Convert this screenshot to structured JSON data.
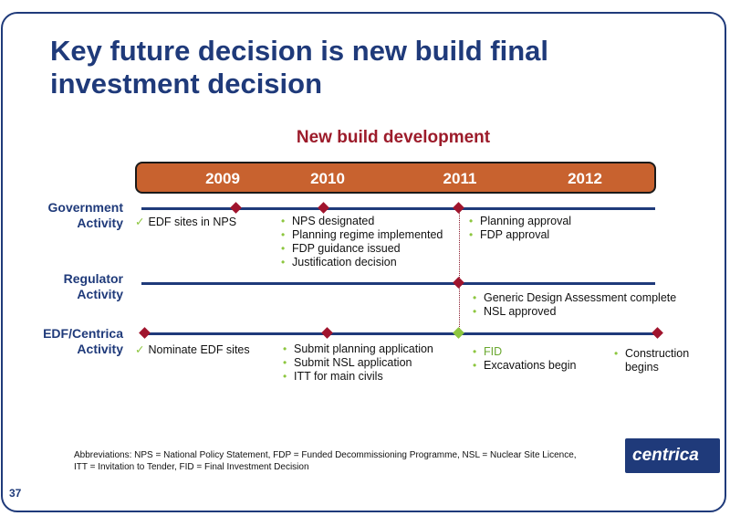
{
  "page": {
    "title_line1": "Key future decision is new build final",
    "title_line2": "investment decision",
    "subtitle": "New build development",
    "page_number": "37",
    "logo_text": "centrica"
  },
  "years": [
    "2009",
    "2010",
    "2011",
    "2012"
  ],
  "rows": {
    "government": {
      "label_line1": "Government",
      "label_line2": "Activity",
      "check": "EDF sites in NPS",
      "group_2010": [
        "NPS designated",
        "Planning regime implemented",
        "FDP guidance issued",
        "Justification decision"
      ],
      "group_2011": [
        "Planning approval",
        "FDP approval"
      ]
    },
    "regulator": {
      "label_line1": "Regulator",
      "label_line2": "Activity",
      "group_2011": [
        "Generic Design Assessment complete",
        "NSL approved"
      ]
    },
    "edf": {
      "label_line1": "EDF/Centrica",
      "label_line2": "Activity",
      "check": "Nominate EDF sites",
      "group_2010": [
        "Submit planning application",
        "Submit NSL application",
        "ITT for main civils"
      ],
      "group_2011_fid": "FID",
      "group_2011_rest": "Excavations begin",
      "group_2012_line1": "Construction",
      "group_2012_line2": "begins"
    }
  },
  "abbreviations": {
    "line1": "Abbreviations: NPS = National Policy Statement, FDP = Funded Decommissioning Programme, NSL = Nuclear Site Licence,",
    "line2": "ITT = Invitation to Tender, FID = Final Investment Decision"
  },
  "colors": {
    "navy": "#1f3a7a",
    "year_bar": "#c8622f",
    "milestone": "#a0142d",
    "fid_milestone": "#8dc63f",
    "subtitle": "#9c1b2a"
  },
  "icons": {
    "milestone": "diamond-icon",
    "done": "check-icon"
  }
}
